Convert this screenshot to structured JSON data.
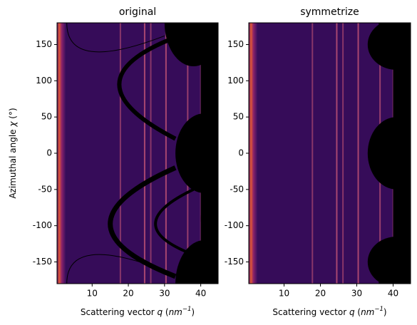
{
  "chart_data": [
    {
      "type": "image",
      "title": "original",
      "xlabel_parts": [
        "Scattering vector ",
        "q",
        " (",
        "nm",
        "−1",
        ")"
      ],
      "ylabel_parts": [
        "Azimuthal angle ",
        "χ",
        " (°)"
      ],
      "xlim": [
        0.3,
        44.8
      ],
      "ylim": [
        -180,
        180
      ],
      "xticks": [
        10,
        20,
        30,
        40
      ],
      "yticks": [
        -150,
        -100,
        -50,
        0,
        50,
        100,
        150
      ]
    },
    {
      "type": "image",
      "title": "symmetrize",
      "xlabel_parts": [
        "Scattering vector ",
        "q",
        " (",
        "nm",
        "−1",
        ")"
      ],
      "xlim": [
        0.3,
        44.8
      ],
      "ylim": [
        -180,
        180
      ],
      "xticks": [
        10,
        20,
        30,
        40
      ],
      "yticks": [
        -150,
        -100,
        -50,
        0,
        50,
        100,
        150
      ]
    }
  ]
}
